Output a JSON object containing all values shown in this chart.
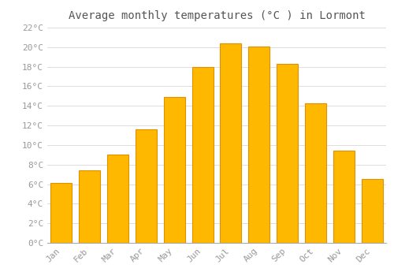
{
  "title": "Average monthly temperatures (°C ) in Lormont",
  "months": [
    "Jan",
    "Feb",
    "Mar",
    "Apr",
    "May",
    "Jun",
    "Jul",
    "Aug",
    "Sep",
    "Oct",
    "Nov",
    "Dec"
  ],
  "values": [
    6.1,
    7.4,
    9.0,
    11.6,
    14.9,
    18.0,
    20.4,
    20.1,
    18.3,
    14.3,
    9.4,
    6.5
  ],
  "bar_color": "#FFB800",
  "bar_edge_color": "#E09000",
  "background_color": "#FFFFFF",
  "grid_color": "#DDDDDD",
  "text_color": "#999999",
  "ylim": [
    0,
    22
  ],
  "ytick_step": 2,
  "title_fontsize": 10,
  "tick_fontsize": 8
}
